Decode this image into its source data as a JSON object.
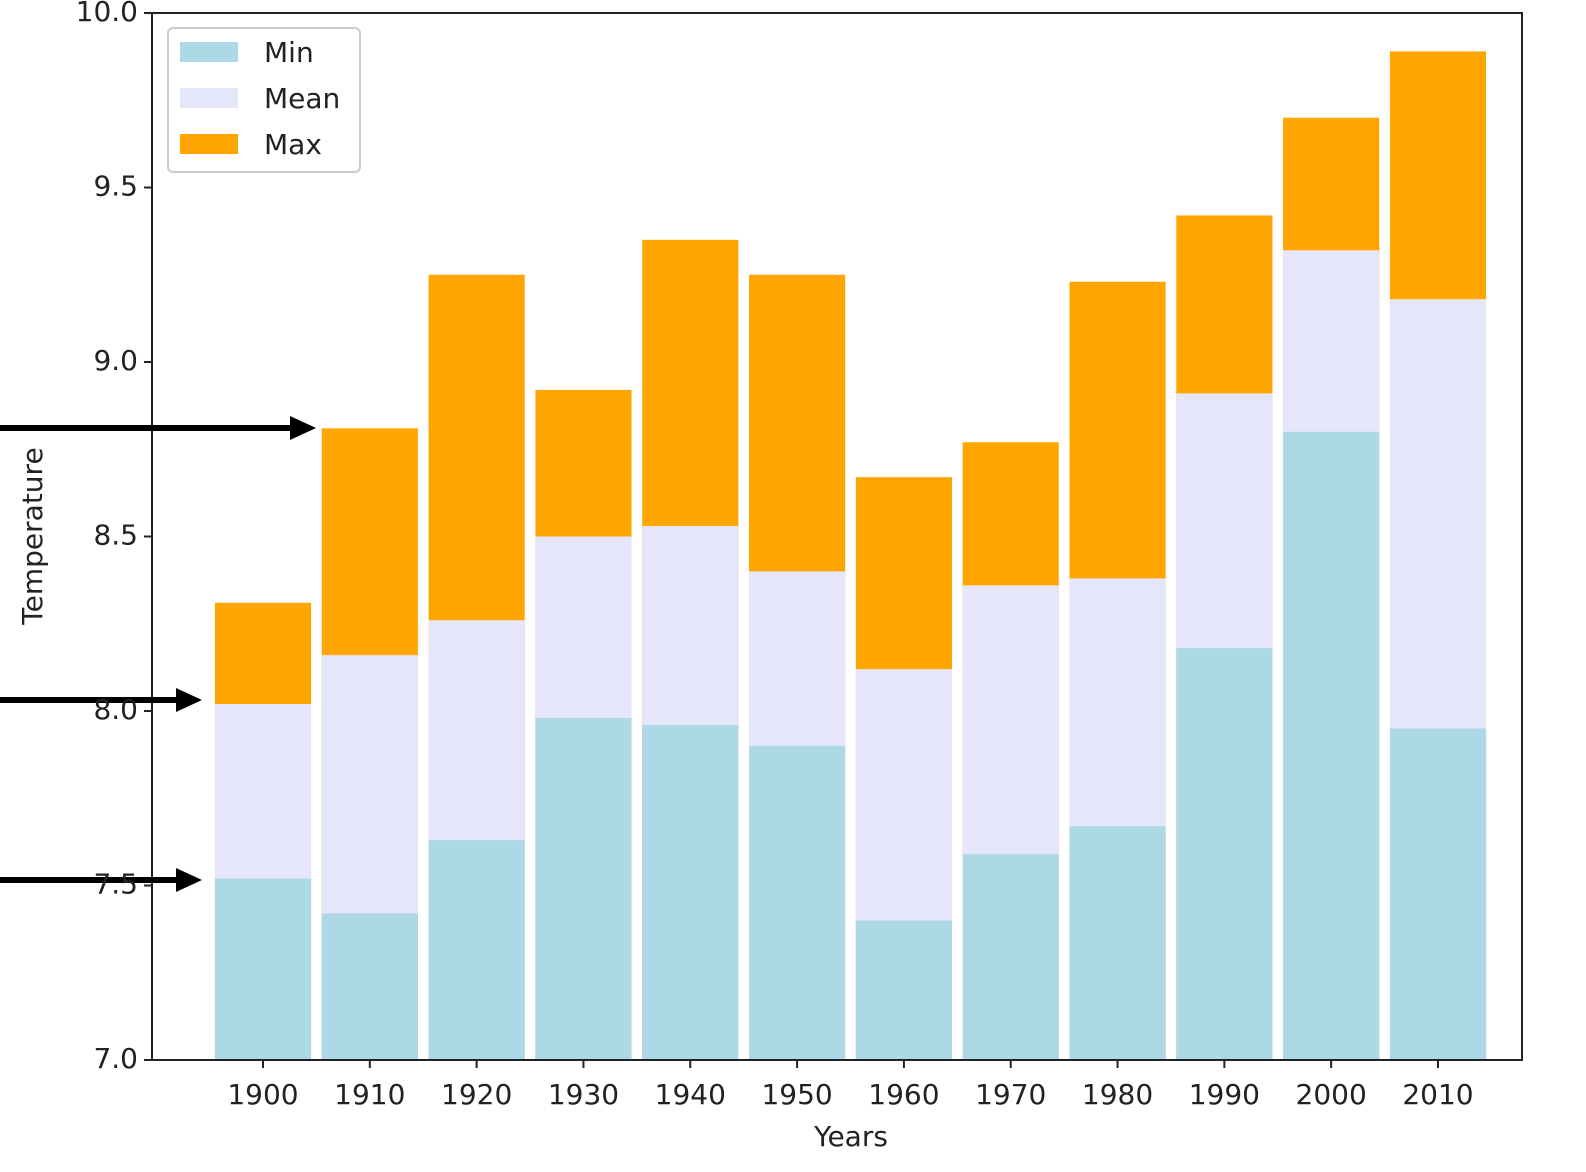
{
  "chart_data": {
    "type": "bar",
    "xlabel": "Years",
    "ylabel": "Temperature",
    "categories": [
      "1900",
      "1910",
      "1920",
      "1930",
      "1940",
      "1950",
      "1960",
      "1970",
      "1980",
      "1990",
      "2000",
      "2010"
    ],
    "series": [
      {
        "name": "Min",
        "color": "#add8e6",
        "values": [
          7.52,
          7.42,
          7.63,
          7.98,
          7.96,
          7.9,
          7.4,
          7.59,
          7.67,
          8.18,
          8.8,
          7.95
        ]
      },
      {
        "name": "Mean",
        "color": "#e6e6fa",
        "values": [
          8.02,
          8.16,
          8.26,
          8.5,
          8.53,
          8.4,
          8.12,
          8.36,
          8.38,
          8.91,
          9.32,
          9.18
        ]
      },
      {
        "name": "Max",
        "color": "#ffa500",
        "values": [
          8.31,
          8.81,
          9.25,
          8.92,
          9.35,
          9.25,
          8.67,
          8.77,
          9.23,
          9.42,
          9.7,
          9.89
        ]
      }
    ],
    "ylim": [
      7,
      10
    ],
    "yticks": [
      {
        "value": 7,
        "label": "7.0"
      },
      {
        "value": 7.5,
        "label": "7.5"
      },
      {
        "value": 8,
        "label": "8.0"
      },
      {
        "value": 8.5,
        "label": "8.5"
      },
      {
        "value": 9,
        "label": "9.0"
      },
      {
        "value": 9.5,
        "label": "9.5"
      },
      {
        "value": 10,
        "label": "10.0"
      }
    ],
    "grid": false,
    "legend": "upper left"
  }
}
